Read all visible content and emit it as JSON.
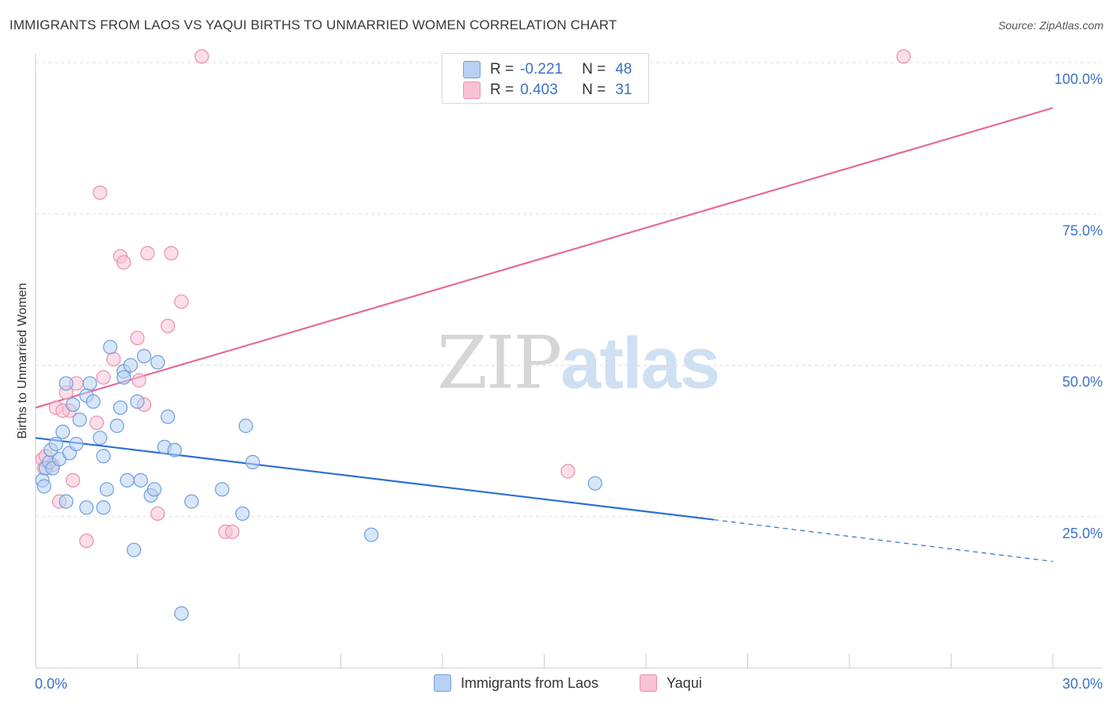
{
  "title": "IMMIGRANTS FROM LAOS VS YAQUI BIRTHS TO UNMARRIED WOMEN CORRELATION CHART",
  "source": "Source: ZipAtlas.com",
  "watermark": {
    "zip": "ZIP",
    "atlas": "atlas"
  },
  "colors": {
    "blue_fill": "#b8d1f3",
    "blue_stroke": "#6d9ee0",
    "blue_line": "#2e6fd1",
    "pink_fill": "#f8c3d3",
    "pink_stroke": "#ec8fad",
    "pink_line": "#e46b94",
    "axis_value": "#3b72c4",
    "grid": "#dddddd"
  },
  "legend": {
    "rows": [
      {
        "r_label": "R =",
        "r_value": "-0.221",
        "n_label": "N =",
        "n_value": "48",
        "color": "#b8d1f3"
      },
      {
        "r_label": "R =",
        "r_value": "0.403",
        "n_label": "N =",
        "n_value": "31",
        "color": "#f8c3d3"
      }
    ]
  },
  "bottom_legend": {
    "series1": "Immigrants from Laos",
    "series2": "Yaqui"
  },
  "chart_data": {
    "type": "scatter",
    "title": "IMMIGRANTS FROM LAOS VS YAQUI BIRTHS TO UNMARRIED WOMEN CORRELATION CHART",
    "xlabel": "",
    "ylabel": "Births to Unmarried Women",
    "xlim": [
      0,
      30
    ],
    "ylim": [
      0,
      100
    ],
    "x_tick_labels": [
      "0.0%",
      "30.0%"
    ],
    "y_tick_labels": [
      "25.0%",
      "50.0%",
      "75.0%",
      "100.0%"
    ],
    "y_ticks": [
      25,
      50,
      75,
      100
    ],
    "series": [
      {
        "name": "Immigrants from Laos",
        "color": "#b8d1f3",
        "trend": {
          "x": [
            0,
            20.0,
            30
          ],
          "y": [
            38.0,
            24.5,
            17.6
          ],
          "dashed_from_x": 20.0
        },
        "points": [
          [
            0.2,
            31
          ],
          [
            0.25,
            30
          ],
          [
            0.3,
            33
          ],
          [
            0.4,
            34
          ],
          [
            0.45,
            36
          ],
          [
            0.5,
            33
          ],
          [
            0.6,
            37
          ],
          [
            0.7,
            34.5
          ],
          [
            0.8,
            39
          ],
          [
            0.9,
            27.5
          ],
          [
            1.0,
            35.5
          ],
          [
            1.1,
            43.5
          ],
          [
            1.2,
            37
          ],
          [
            1.3,
            41
          ],
          [
            1.5,
            45
          ],
          [
            1.6,
            47
          ],
          [
            1.7,
            44
          ],
          [
            1.9,
            38
          ],
          [
            2.0,
            35
          ],
          [
            2.1,
            29.5
          ],
          [
            2.0,
            26.5
          ],
          [
            1.5,
            26.5
          ],
          [
            2.4,
            40
          ],
          [
            2.5,
            43
          ],
          [
            2.6,
            49
          ],
          [
            2.8,
            50
          ],
          [
            2.7,
            31
          ],
          [
            2.9,
            19.5
          ],
          [
            3.0,
            44
          ],
          [
            3.1,
            31
          ],
          [
            3.4,
            28.5
          ],
          [
            3.5,
            29.5
          ],
          [
            3.6,
            50.5
          ],
          [
            3.8,
            36.5
          ],
          [
            3.9,
            41.5
          ],
          [
            4.1,
            36
          ],
          [
            4.3,
            9
          ],
          [
            4.6,
            27.5
          ],
          [
            5.5,
            29.5
          ],
          [
            6.1,
            25.5
          ],
          [
            6.2,
            40
          ],
          [
            6.4,
            34
          ],
          [
            9.9,
            22
          ],
          [
            16.5,
            30.5
          ],
          [
            0.9,
            47
          ],
          [
            2.2,
            53
          ],
          [
            3.2,
            51.5
          ],
          [
            2.6,
            48
          ]
        ]
      },
      {
        "name": "Yaqui",
        "color": "#f8c3d3",
        "trend": {
          "x": [
            0,
            30
          ],
          "y": [
            43.0,
            92.5
          ]
        },
        "points": [
          [
            0.2,
            34.5
          ],
          [
            0.3,
            35
          ],
          [
            0.5,
            33.5
          ],
          [
            0.6,
            43
          ],
          [
            0.7,
            27.5
          ],
          [
            0.9,
            45.5
          ],
          [
            1.0,
            42.5
          ],
          [
            1.1,
            31
          ],
          [
            1.2,
            47
          ],
          [
            1.5,
            21
          ],
          [
            1.8,
            40.5
          ],
          [
            1.9,
            78.5
          ],
          [
            2.0,
            48
          ],
          [
            2.3,
            51
          ],
          [
            2.5,
            68
          ],
          [
            2.6,
            67
          ],
          [
            3.0,
            54.5
          ],
          [
            3.2,
            43.5
          ],
          [
            3.3,
            68.5
          ],
          [
            3.6,
            25.5
          ],
          [
            3.9,
            56.5
          ],
          [
            4.0,
            68.5
          ],
          [
            4.3,
            60.5
          ],
          [
            4.9,
            101
          ],
          [
            5.6,
            22.5
          ],
          [
            5.8,
            22.5
          ],
          [
            15.7,
            32.5
          ],
          [
            25.6,
            101
          ],
          [
            0.25,
            33
          ],
          [
            0.8,
            42.5
          ],
          [
            3.05,
            47.5
          ]
        ]
      }
    ]
  }
}
